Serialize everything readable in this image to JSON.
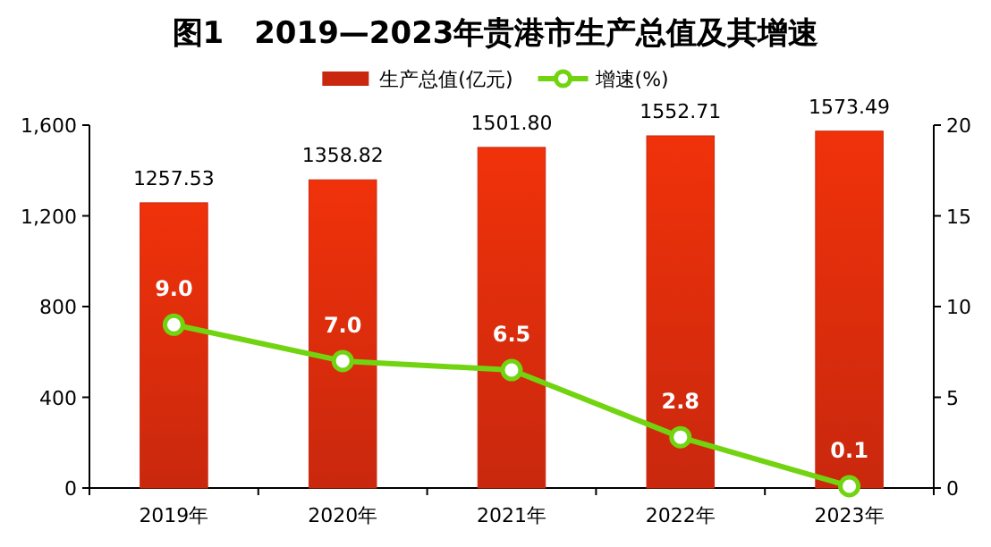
{
  "chart_data": {
    "type": "bar",
    "title": "图1　2019—2023年贵港市生产总值及其增速",
    "categories": [
      "2019年",
      "2020年",
      "2021年",
      "2022年",
      "2023年"
    ],
    "series": [
      {
        "name": "生产总值(亿元)",
        "color": "#c9280e",
        "values": [
          1257.53,
          1358.82,
          1501.8,
          1552.71,
          1573.49
        ],
        "value_labels": [
          "1257.53",
          "1358.82",
          "1501.80",
          "1552.71",
          "1573.49"
        ]
      },
      {
        "name": "增速(%)",
        "type": "line",
        "axis": "y2",
        "color": "#72d411",
        "marker": "circle",
        "values": [
          9.0,
          7.0,
          6.5,
          2.8,
          0.1
        ],
        "value_labels": [
          "9.0",
          "7.0",
          "6.5",
          "2.8",
          "0.1"
        ]
      }
    ],
    "ylim": [
      0,
      1600
    ],
    "yticks": [
      0,
      400,
      800,
      {
        "value": 1200,
        "label": "1,200"
      },
      {
        "value": 1600,
        "label": "1,600"
      }
    ],
    "y2lim": [
      0,
      20
    ],
    "y2ticks": [
      0,
      5,
      10,
      15,
      20
    ],
    "legend": "top",
    "grid": false
  }
}
